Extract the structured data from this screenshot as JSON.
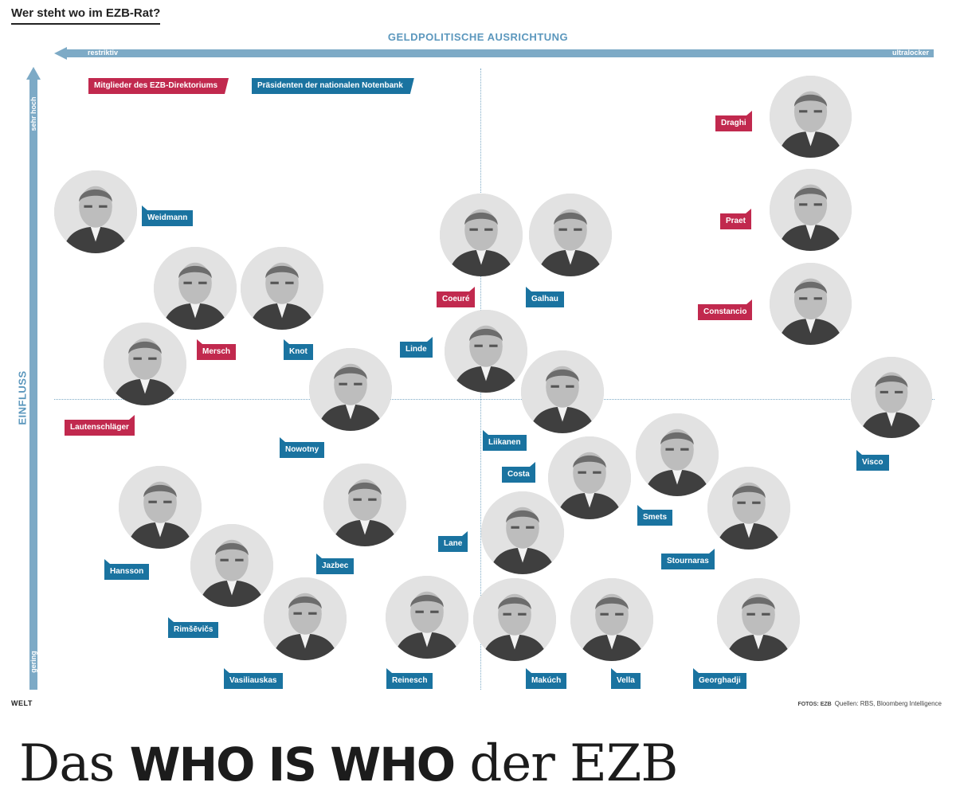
{
  "title": "Wer steht wo im EZB-Rat?",
  "colors": {
    "axis": "#7daac6",
    "axis_text": "#5b97bd",
    "directorate": "#c1294e",
    "national": "#1a73a0"
  },
  "x_axis": {
    "title": "GELDPOLITISCHE AUSRICHTUNG",
    "left_label": "restriktiv",
    "right_label": "ultralocker"
  },
  "y_axis": {
    "title": "EINFLUSS",
    "top_label": "sehr hoch",
    "bottom_label": "gering"
  },
  "legend": {
    "directorate": "Mitglieder des EZB-Direktoriums",
    "national": "Präsidenten der nationalen Notenbank"
  },
  "members": [
    {
      "name": "Draghi",
      "group": "directorate",
      "icon": "portrait-icon"
    },
    {
      "name": "Praet",
      "group": "directorate",
      "icon": "portrait-icon"
    },
    {
      "name": "Constancio",
      "group": "directorate",
      "icon": "portrait-icon"
    },
    {
      "name": "Weidmann",
      "group": "national",
      "icon": "portrait-icon"
    },
    {
      "name": "Coeuré",
      "group": "directorate",
      "icon": "portrait-icon"
    },
    {
      "name": "Galhau",
      "group": "national",
      "icon": "portrait-icon"
    },
    {
      "name": "Mersch",
      "group": "directorate",
      "icon": "portrait-icon"
    },
    {
      "name": "Knot",
      "group": "national",
      "icon": "portrait-icon"
    },
    {
      "name": "Linde",
      "group": "national",
      "icon": "portrait-icon"
    },
    {
      "name": "Lautenschläger",
      "group": "directorate",
      "icon": "portrait-icon"
    },
    {
      "name": "Nowotny",
      "group": "national",
      "icon": "portrait-icon"
    },
    {
      "name": "Liikanen",
      "group": "national",
      "icon": "portrait-icon"
    },
    {
      "name": "Visco",
      "group": "national",
      "icon": "portrait-icon"
    },
    {
      "name": "Costa",
      "group": "national",
      "icon": "portrait-icon"
    },
    {
      "name": "Smets",
      "group": "national",
      "icon": "portrait-icon"
    },
    {
      "name": "Hansson",
      "group": "national",
      "icon": "portrait-icon"
    },
    {
      "name": "Jazbec",
      "group": "national",
      "icon": "portrait-icon"
    },
    {
      "name": "Lane",
      "group": "national",
      "icon": "portrait-icon"
    },
    {
      "name": "Stournaras",
      "group": "national",
      "icon": "portrait-icon"
    },
    {
      "name": "Rimšēvičs",
      "group": "national",
      "icon": "portrait-icon"
    },
    {
      "name": "Vasiliauskas",
      "group": "national",
      "icon": "portrait-icon"
    },
    {
      "name": "Reinesch",
      "group": "national",
      "icon": "portrait-icon"
    },
    {
      "name": "Makúch",
      "group": "national",
      "icon": "portrait-icon"
    },
    {
      "name": "Vella",
      "group": "national",
      "icon": "portrait-icon"
    },
    {
      "name": "Georghadji",
      "group": "national",
      "icon": "portrait-icon"
    }
  ],
  "footer": {
    "logo": "WELT",
    "photo_credit": "FOTOS: EZB",
    "sources": "Quellen: RBS, Bloomberg Intelligence"
  },
  "headline": {
    "pre": "Das",
    "bold": "WHO IS WHO",
    "post": "der EZB"
  }
}
